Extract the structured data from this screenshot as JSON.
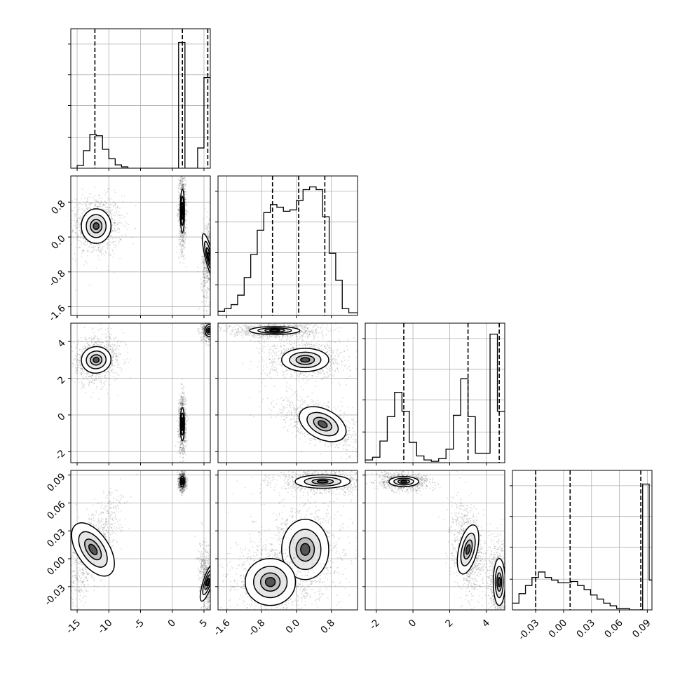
{
  "chart_data": {
    "type": "corner",
    "title": "",
    "grid": true,
    "parameter_labels": [],
    "ranges": [
      [
        -16,
        6
      ],
      [
        -1.8,
        1.4
      ],
      [
        -2.6,
        5.0
      ],
      [
        -0.055,
        0.095
      ]
    ],
    "ticks": [
      [
        "-15",
        "-10",
        "-5",
        "0",
        "5"
      ],
      [
        "-1.6",
        "-0.8",
        "0.0",
        "0.8"
      ],
      [
        "-2",
        "0",
        "2",
        "4"
      ],
      [
        "-0.03",
        "0.00",
        "0.03",
        "0.06",
        "0.09"
      ]
    ],
    "quantiles": [
      [
        -12.2,
        1.6,
        5.6
      ],
      [
        -0.55,
        0.05,
        0.65
      ],
      [
        -0.5,
        3.0,
        4.7
      ],
      [
        -0.03,
        0.007,
        0.083
      ]
    ],
    "histograms": [
      {
        "bins": [
          -16,
          -15,
          -14,
          -13,
          -12,
          -11,
          -10,
          -9,
          -8,
          -7,
          -6,
          -5,
          -4,
          -3,
          -2,
          -1,
          0,
          1,
          2,
          3,
          4,
          5,
          6
        ],
        "counts": [
          0,
          0.02,
          0.13,
          0.25,
          0.24,
          0.14,
          0.07,
          0.025,
          0.01,
          0,
          0,
          0,
          0,
          0,
          0,
          0,
          0,
          0.93,
          0,
          0,
          0.15,
          0.67
        ]
      },
      {
        "bins": [
          -1.8,
          -1.65,
          -1.5,
          -1.35,
          -1.2,
          -1.05,
          -0.9,
          -0.75,
          -0.6,
          -0.45,
          -0.3,
          -0.15,
          0.0,
          0.15,
          0.3,
          0.45,
          0.6,
          0.75,
          0.9,
          1.05,
          1.2,
          1.4
        ],
        "counts": [
          0.03,
          0.05,
          0.08,
          0.15,
          0.28,
          0.45,
          0.63,
          0.76,
          0.82,
          0.8,
          0.77,
          0.78,
          0.85,
          0.93,
          0.95,
          0.93,
          0.73,
          0.46,
          0.26,
          0.05,
          0.02
        ]
      },
      {
        "bins": [
          -2.6,
          -2.2,
          -1.8,
          -1.4,
          -1.0,
          -0.6,
          -0.2,
          0.2,
          0.6,
          1.0,
          1.4,
          1.8,
          2.2,
          2.6,
          3.0,
          3.4,
          3.8,
          4.2,
          4.6,
          5.0
        ],
        "counts": [
          0.02,
          0.04,
          0.16,
          0.34,
          0.52,
          0.38,
          0.15,
          0.05,
          0.02,
          0.01,
          0.03,
          0.1,
          0.35,
          0.62,
          0.34,
          0.07,
          0.07,
          0.95,
          0.38
        ]
      },
      {
        "bins": [
          -0.055,
          -0.048,
          -0.041,
          -0.034,
          -0.027,
          -0.02,
          -0.013,
          -0.006,
          0.001,
          0.008,
          0.015,
          0.022,
          0.029,
          0.036,
          0.043,
          0.05,
          0.057,
          0.064,
          0.071,
          0.078,
          0.085,
          0.092,
          0.095
        ],
        "counts": [
          0.05,
          0.12,
          0.18,
          0.24,
          0.28,
          0.24,
          0.22,
          0.2,
          0.2,
          0.21,
          0.18,
          0.15,
          0.11,
          0.08,
          0.05,
          0.03,
          0.01,
          0.01,
          0,
          0,
          0.93,
          0.22
        ]
      }
    ],
    "density_blobs": [
      {
        "row": 1,
        "col": 0,
        "modes": [
          {
            "x": -12,
            "y": 0.25,
            "sx": 1.3,
            "sy": 0.22,
            "rho": 0.0,
            "w": 1.0
          },
          {
            "x": 1.6,
            "y": 0.6,
            "sx": 0.18,
            "sy": 0.28,
            "rho": 0.0,
            "w": 1.0
          },
          {
            "x": 5.8,
            "y": -0.45,
            "sx": 0.35,
            "sy": 0.3,
            "rho": 0.3,
            "w": 0.8
          }
        ]
      },
      {
        "row": 2,
        "col": 0,
        "modes": [
          {
            "x": -12,
            "y": 3.0,
            "sx": 1.3,
            "sy": 0.4,
            "rho": 0.2,
            "w": 1.0
          },
          {
            "x": 1.6,
            "y": -0.5,
            "sx": 0.18,
            "sy": 0.5,
            "rho": 0.0,
            "w": 1.0
          },
          {
            "x": 5.8,
            "y": 4.6,
            "sx": 0.35,
            "sy": 0.18,
            "rho": 0.0,
            "w": 0.8
          }
        ]
      },
      {
        "row": 2,
        "col": 1,
        "modes": [
          {
            "x": -0.5,
            "y": 4.6,
            "sx": 0.32,
            "sy": 0.12,
            "rho": 0.0,
            "w": 1.0
          },
          {
            "x": 0.2,
            "y": 3.0,
            "sx": 0.3,
            "sy": 0.35,
            "rho": 0.0,
            "w": 1.0
          },
          {
            "x": 0.6,
            "y": -0.5,
            "sx": 0.32,
            "sy": 0.45,
            "rho": -0.6,
            "w": 1.0
          }
        ]
      },
      {
        "row": 3,
        "col": 0,
        "modes": [
          {
            "x": -12.5,
            "y": 0.01,
            "sx": 1.4,
            "sy": 0.018,
            "rho": 0.75,
            "w": 1.0
          },
          {
            "x": 1.6,
            "y": 0.083,
            "sx": 0.18,
            "sy": 0.003,
            "rho": 0.0,
            "w": 1.0
          },
          {
            "x": 5.6,
            "y": -0.025,
            "sx": 0.4,
            "sy": 0.012,
            "rho": -0.4,
            "w": 0.8
          }
        ]
      },
      {
        "row": 3,
        "col": 1,
        "modes": [
          {
            "x": 0.6,
            "y": 0.083,
            "sx": 0.35,
            "sy": 0.004,
            "rho": 0.0,
            "w": 1.0
          },
          {
            "x": 0.2,
            "y": 0.01,
            "sx": 0.3,
            "sy": 0.018,
            "rho": 0.0,
            "w": 1.0
          },
          {
            "x": -0.6,
            "y": -0.025,
            "sx": 0.32,
            "sy": 0.014,
            "rho": 0.0,
            "w": 1.0
          }
        ]
      },
      {
        "row": 3,
        "col": 2,
        "modes": [
          {
            "x": -0.5,
            "y": 0.083,
            "sx": 0.45,
            "sy": 0.003,
            "rho": 0.0,
            "w": 1.0
          },
          {
            "x": 3.0,
            "y": 0.01,
            "sx": 0.28,
            "sy": 0.015,
            "rho": -0.3,
            "w": 1.0
          },
          {
            "x": 4.7,
            "y": -0.025,
            "sx": 0.18,
            "sy": 0.014,
            "rho": 0.0,
            "w": 1.0
          }
        ]
      }
    ]
  }
}
